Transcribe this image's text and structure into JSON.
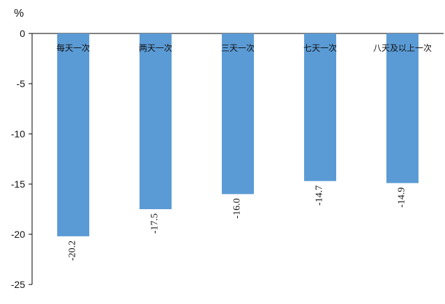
{
  "chart_data": {
    "type": "bar",
    "unit": "%",
    "categories": [
      "每天一次",
      "两天一次",
      "三天一次",
      "七天一次",
      "八天及以上一次"
    ],
    "values": [
      -20.2,
      -17.5,
      -16.0,
      -14.7,
      -14.9
    ],
    "value_labels": [
      "-20.2",
      "-17.5",
      "-16.0",
      "-14.7",
      "-14.9"
    ],
    "ylim": [
      -25,
      0
    ],
    "yticks": [
      0,
      -5,
      -10,
      -15,
      -20,
      -25
    ],
    "ytick_labels": [
      "0",
      "-5",
      "-10",
      "-15",
      "-20",
      "-25"
    ],
    "title": "",
    "xlabel": "",
    "ylabel": "",
    "grid": false,
    "legend": "none",
    "bar_color": "#5b9bd5"
  }
}
